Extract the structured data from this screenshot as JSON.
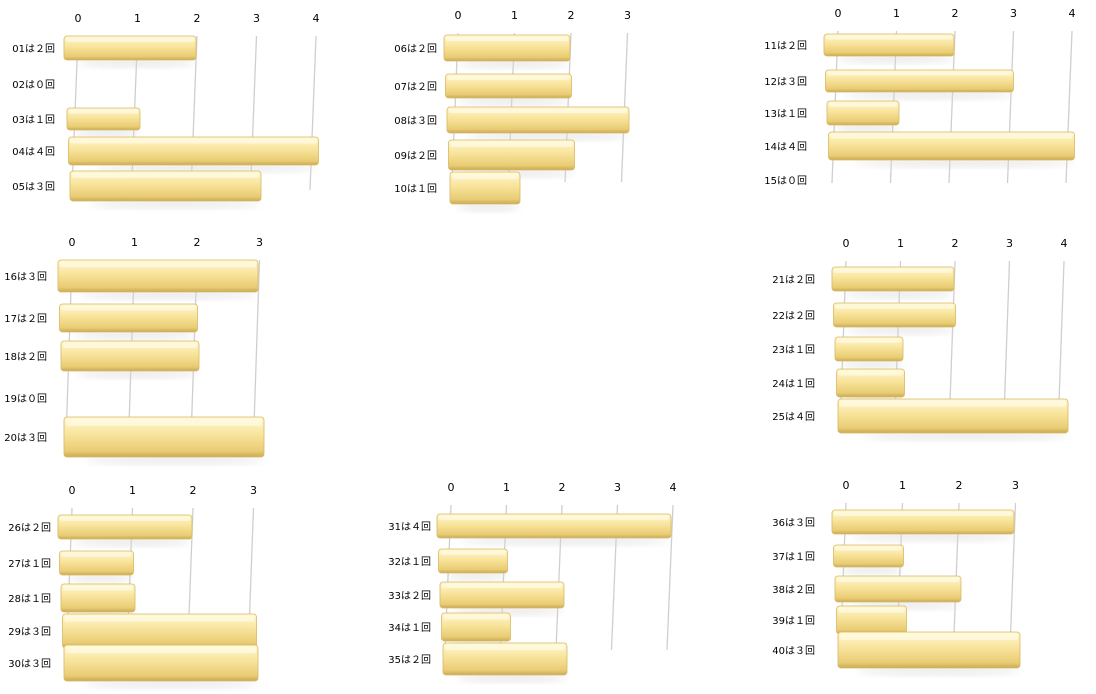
{
  "colors": {
    "bar_light": "#fff5c2",
    "bar_mid": "#f6dd8c",
    "bar_dark": "#c8a956",
    "grid": "#cfcfcf"
  },
  "chart_data": [
    {
      "type": "bar",
      "orientation": "horizontal",
      "xlim": [
        0,
        4
      ],
      "ticks": [
        "0",
        "1",
        "2",
        "3",
        "4"
      ],
      "categories": [
        "01は２回",
        "02は０回",
        "03は１回",
        "04は４回",
        "05は３回"
      ],
      "values": [
        2,
        0,
        1,
        4,
        3
      ]
    },
    {
      "type": "bar",
      "orientation": "horizontal",
      "xlim": [
        0,
        3
      ],
      "ticks": [
        "0",
        "1",
        "2",
        "3"
      ],
      "categories": [
        "06は２回",
        "07は２回",
        "08は３回",
        "09は２回",
        "10は１回"
      ],
      "values": [
        2,
        2,
        3,
        2,
        1
      ]
    },
    {
      "type": "bar",
      "orientation": "horizontal",
      "xlim": [
        0,
        4
      ],
      "ticks": [
        "0",
        "1",
        "2",
        "3",
        "4"
      ],
      "categories": [
        "11は２回",
        "12は３回",
        "13は１回",
        "14は４回",
        "15は０回"
      ],
      "values": [
        2,
        3,
        1,
        4,
        0
      ]
    },
    {
      "type": "bar",
      "orientation": "horizontal",
      "xlim": [
        0,
        3
      ],
      "ticks": [
        "0",
        "1",
        "2",
        "3"
      ],
      "categories": [
        "16は３回",
        "17は２回",
        "18は２回",
        "19は０回",
        "20は３回"
      ],
      "values": [
        3,
        2,
        2,
        0,
        3
      ]
    },
    {
      "type": "bar",
      "orientation": "horizontal",
      "xlim": [
        0,
        4
      ],
      "ticks": [
        "0",
        "1",
        "2",
        "3",
        "4"
      ],
      "categories": [
        "21は２回",
        "22は２回",
        "23は１回",
        "24は１回",
        "25は４回"
      ],
      "values": [
        2,
        2,
        1,
        1,
        4
      ]
    },
    {
      "type": "bar",
      "orientation": "horizontal",
      "xlim": [
        0,
        3
      ],
      "ticks": [
        "0",
        "1",
        "2",
        "3"
      ],
      "categories": [
        "26は２回",
        "27は１回",
        "28は１回",
        "29は３回",
        "30は３回"
      ],
      "values": [
        2,
        1,
        1,
        3,
        3
      ]
    },
    {
      "type": "bar",
      "orientation": "horizontal",
      "xlim": [
        0,
        4
      ],
      "ticks": [
        "0",
        "1",
        "2",
        "3",
        "4"
      ],
      "categories": [
        "31は４回",
        "32は１回",
        "33は２回",
        "34は１回",
        "35は２回"
      ],
      "values": [
        4,
        1,
        2,
        1,
        2
      ]
    },
    {
      "type": "bar",
      "orientation": "horizontal",
      "xlim": [
        0,
        3
      ],
      "ticks": [
        "0",
        "1",
        "2",
        "3"
      ],
      "categories": [
        "36は３回",
        "37は１回",
        "38は２回",
        "39は１回",
        "40は３回"
      ],
      "values": [
        3,
        1,
        2,
        1,
        3
      ]
    }
  ]
}
